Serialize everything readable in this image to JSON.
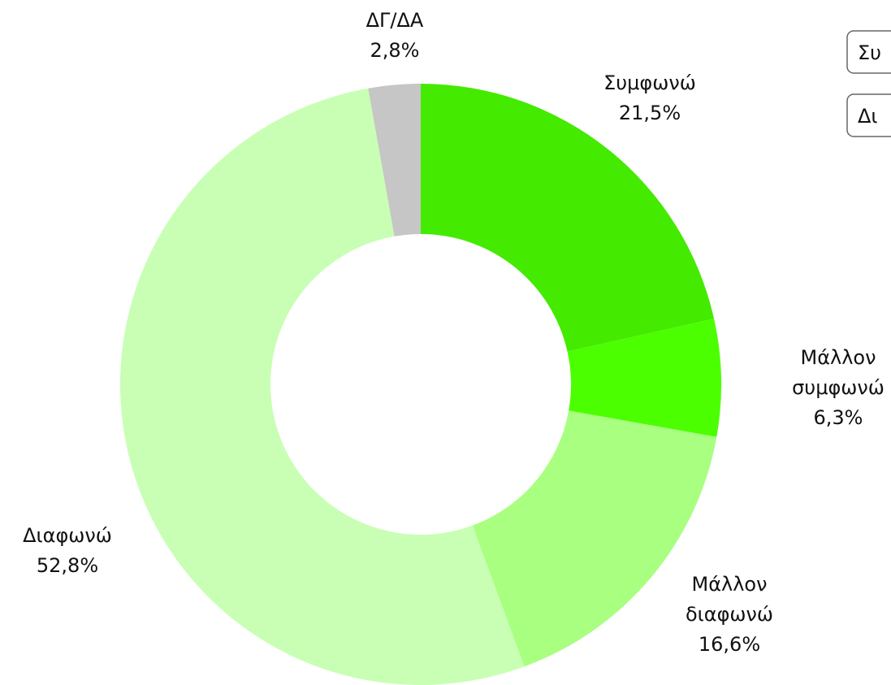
{
  "chart_data": {
    "type": "donut",
    "categories": [
      "Συμφωνώ",
      "Μάλλον συμφωνώ",
      "Μάλλον διαφωνώ",
      "Διαφωνώ",
      "ΔΓ/ΔΑ"
    ],
    "values": [
      21.5,
      6.3,
      16.6,
      52.8,
      2.8
    ],
    "value_labels": [
      "21,5%",
      "6,3%",
      "16,6%",
      "52,8%",
      "2,8%"
    ],
    "colors": [
      "#44ea00",
      "#4cff00",
      "#a8ff80",
      "#c8ffb4",
      "#c6c6c6"
    ],
    "legend": [
      "Συ",
      "Δι"
    ]
  }
}
